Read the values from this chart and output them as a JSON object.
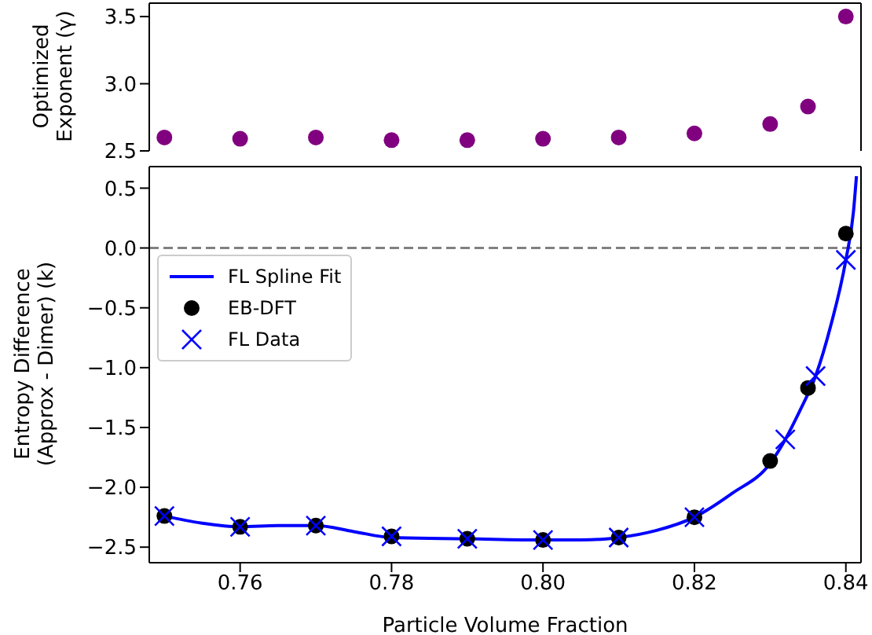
{
  "chart_data": [
    {
      "type": "scatter",
      "ylabel": "Optimized\nExponent (γ)",
      "xlim": [
        0.748,
        0.842
      ],
      "ylim": [
        2.5,
        3.6
      ],
      "yticks": [
        {
          "value": 2.5,
          "label": "2.5"
        },
        {
          "value": 3.0,
          "label": "3.0"
        },
        {
          "value": 3.5,
          "label": "3.5"
        }
      ],
      "tick_labels": "y",
      "grid": false,
      "legend": false,
      "marker": "circle",
      "series": [
        {
          "x": [
            0.75,
            0.76,
            0.77,
            0.78,
            0.79,
            0.8,
            0.81,
            0.82,
            0.83,
            0.835,
            0.84
          ],
          "color": "#800080",
          "values": [
            2.6,
            2.59,
            2.6,
            2.58,
            2.58,
            2.59,
            2.6,
            2.63,
            2.7,
            2.83,
            3.5
          ]
        }
      ]
    },
    {
      "type": "scatter",
      "xlabel": "Particle Volume Fraction",
      "ylabel": "Entropy Difference\n(Approx - Dimer) (k)",
      "xlim": [
        0.748,
        0.842
      ],
      "ylim": [
        -2.63,
        0.68
      ],
      "xticks": [
        {
          "value": 0.76,
          "label": "0.76"
        },
        {
          "value": 0.78,
          "label": "0.78"
        },
        {
          "value": 0.8,
          "label": "0.80"
        },
        {
          "value": 0.82,
          "label": "0.82"
        },
        {
          "value": 0.84,
          "label": "0.84"
        }
      ],
      "yticks": [
        {
          "value": -2.5,
          "label": "−2.5"
        },
        {
          "value": -2,
          "label": "−2.0"
        },
        {
          "value": -1.5,
          "label": "−1.5"
        },
        {
          "value": -1,
          "label": "−1.0"
        },
        {
          "value": -0.5,
          "label": "−0.5"
        },
        {
          "value": 0,
          "label": "0.0"
        },
        {
          "value": 0.5,
          "label": "0.5"
        }
      ],
      "grid": false,
      "legend": "top left",
      "ref_lines": [
        {
          "axis": "y",
          "value": 0,
          "color": "#808080",
          "line_style": "dashed"
        }
      ],
      "series": [
        {
          "type": "line",
          "name": "FL Spline Fit",
          "color": "#0000ff",
          "marker": "none",
          "line_style": "solid",
          "x": [
            0.75,
            0.755,
            0.76,
            0.765,
            0.77,
            0.775,
            0.78,
            0.79,
            0.8,
            0.805,
            0.81,
            0.815,
            0.82,
            0.825,
            0.83,
            0.832,
            0.834,
            0.836,
            0.838,
            0.84,
            0.841,
            0.8414
          ],
          "values": [
            -2.24,
            -2.3,
            -2.33,
            -2.32,
            -2.32,
            -2.37,
            -2.42,
            -2.43,
            -2.44,
            -2.44,
            -2.42,
            -2.36,
            -2.25,
            -2.05,
            -1.8,
            -1.6,
            -1.35,
            -1.07,
            -0.65,
            -0.1,
            0.3,
            0.6
          ]
        },
        {
          "name": "EB-DFT",
          "color": "#000000",
          "marker": "circle",
          "x": [
            0.75,
            0.76,
            0.77,
            0.78,
            0.79,
            0.8,
            0.81,
            0.82,
            0.83,
            0.835,
            0.84
          ],
          "values": [
            -2.24,
            -2.33,
            -2.32,
            -2.41,
            -2.43,
            -2.44,
            -2.42,
            -2.25,
            -1.78,
            -1.17,
            0.12
          ]
        },
        {
          "name": "FL Data",
          "color": "#0000ff",
          "marker": "cross",
          "x": [
            0.75,
            0.76,
            0.77,
            0.78,
            0.79,
            0.8,
            0.81,
            0.82,
            0.832,
            0.836,
            0.84
          ],
          "values": [
            -2.24,
            -2.33,
            -2.32,
            -2.41,
            -2.43,
            -2.44,
            -2.42,
            -2.25,
            -1.6,
            -1.07,
            -0.1
          ]
        }
      ]
    }
  ]
}
